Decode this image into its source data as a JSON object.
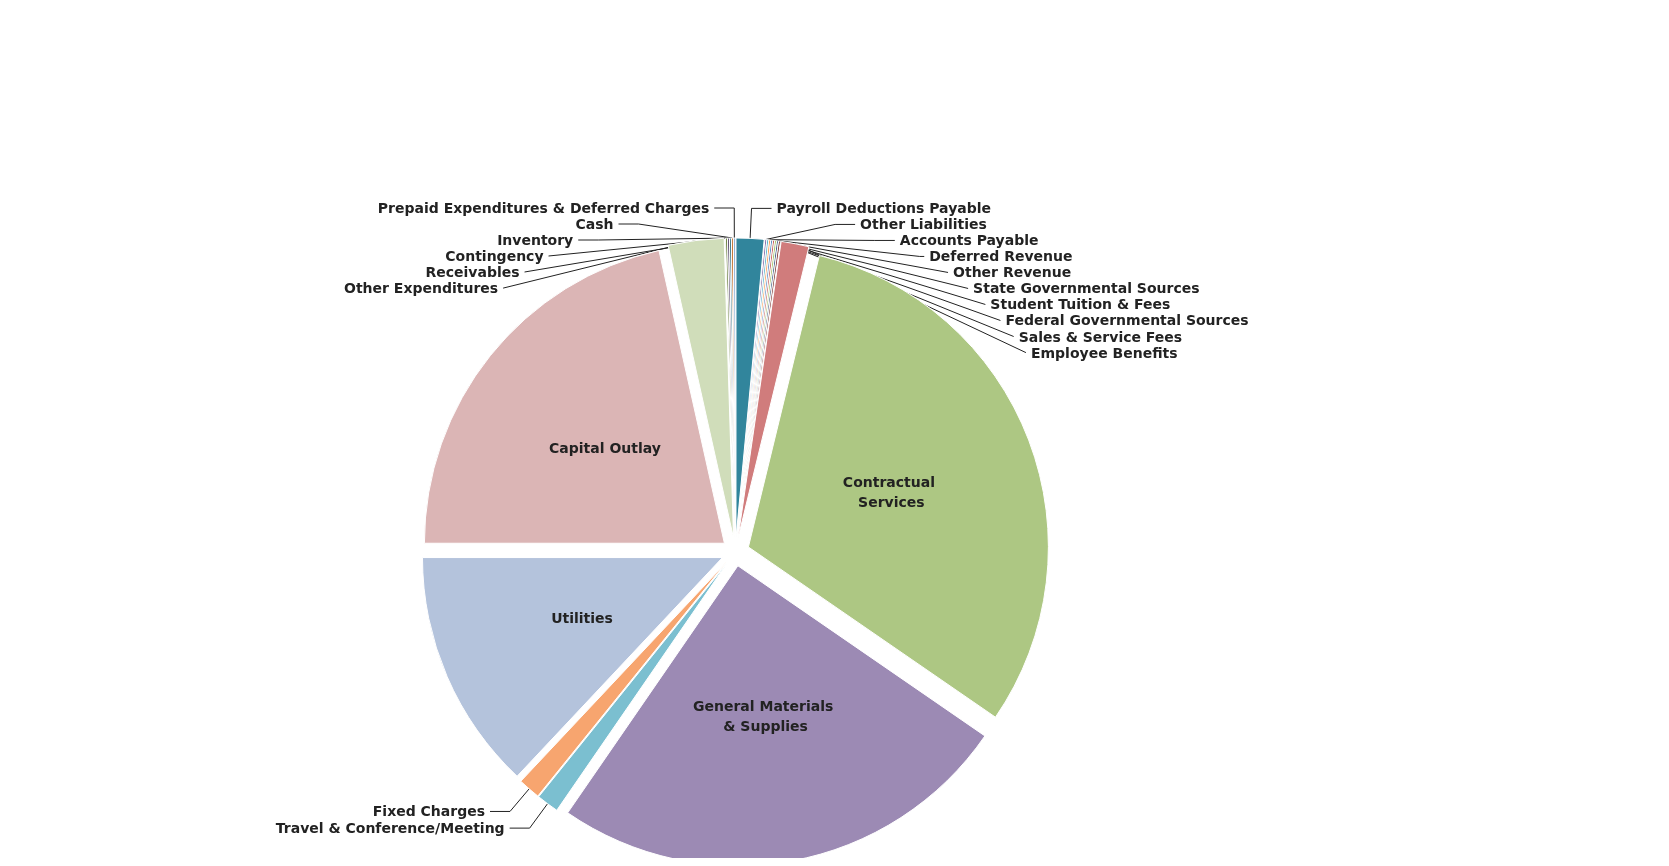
{
  "chart_data": {
    "type": "pie",
    "categories": [
      "Payroll Deductions Payable",
      "Other Liabilities",
      "Accounts Payable",
      "Deferred Revenue",
      "Other Revenue",
      "State Governmental Sources",
      "Student Tuition & Fees",
      "Federal Governmental Sources",
      "Sales & Service Fees",
      "Employee Benefits",
      "Contractual Services",
      "General Materials & Supplies",
      "Travel & Conference/Meeting",
      "Fixed Charges",
      "Utilities",
      "Capital Outlay",
      "Other Expenditures",
      "Receivables",
      "Contingency",
      "Inventory",
      "Cash",
      "Prepaid Expenditures & Deferred Charges"
    ],
    "values": [
      1.5,
      0.1,
      0.1,
      0.1,
      0.1,
      0.1,
      0.1,
      0.1,
      0.1,
      1.5,
      30.8,
      25,
      1.2,
      1.2,
      13,
      21.5,
      3,
      0.1,
      0.1,
      0.1,
      0.1,
      0.1
    ],
    "colors": [
      "#31859c",
      "#8064a2",
      "#4bacc6",
      "#f79646",
      "#4f81bd",
      "#c0504d",
      "#9bbb59",
      "#2c4d75",
      "#772c2a",
      "#d07c7c",
      "#adc783",
      "#9c8ab4",
      "#7bbfd0",
      "#f7a56f",
      "#b4c3dc",
      "#dbb5b5",
      "#d0ddba",
      "#5f7530",
      "#4d3b62",
      "#276a7c",
      "#b65708",
      "#729aca"
    ]
  }
}
